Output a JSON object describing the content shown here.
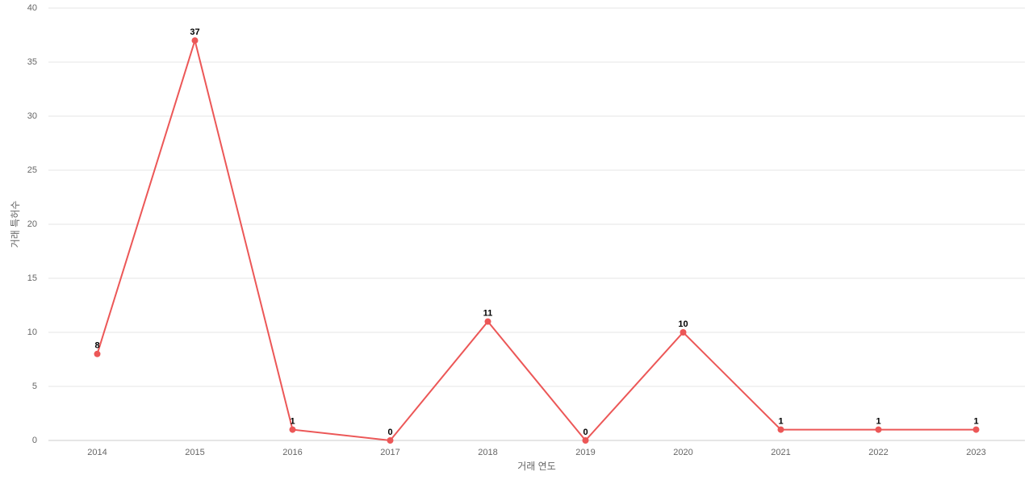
{
  "chart_data": {
    "type": "line",
    "x_label": "거래 연도",
    "y_label": "거래 특허수",
    "categories": [
      "2014",
      "2015",
      "2016",
      "2017",
      "2018",
      "2019",
      "2020",
      "2021",
      "2022",
      "2023"
    ],
    "values": [
      8,
      37,
      1,
      0,
      11,
      0,
      10,
      1,
      1,
      1
    ],
    "color": "#ec5757",
    "ylim": [
      0,
      40
    ],
    "yticks": [
      0,
      5,
      10,
      15,
      20,
      25,
      30,
      35,
      40
    ],
    "grid": true
  }
}
